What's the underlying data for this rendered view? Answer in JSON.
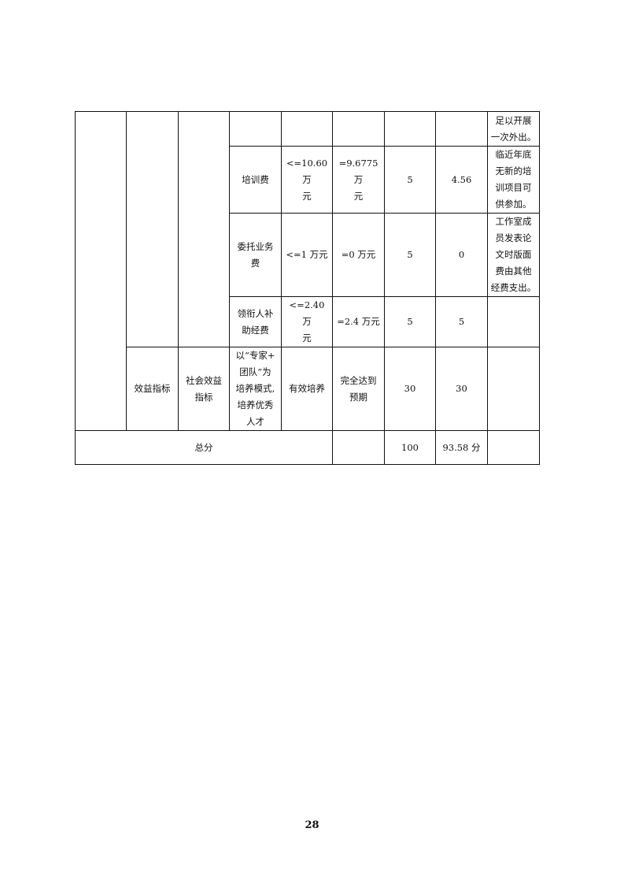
{
  "table": {
    "rows": [
      {
        "cells": [
          "",
          "",
          "",
          "",
          "",
          "",
          "",
          "",
          "足以开展\n一次外出。"
        ]
      },
      {
        "cells": [
          "培训费",
          "<=10.60 万\n元",
          "=9.6775 万\n元",
          "5",
          "4.56",
          "临近年底\n无新的培\n训项目可\n供参加。"
        ]
      },
      {
        "cells": [
          "委托业务\n费",
          "<=1 万元",
          "=0 万元",
          "5",
          "0",
          "工作室成\n员发表论\n文时版面\n费由其他\n经费支出。"
        ]
      },
      {
        "cells": [
          "领衔人补\n助经费",
          "<=2.40 万\n元",
          "=2.4 万元",
          "5",
          "5",
          ""
        ]
      },
      {
        "cells": [
          "效益指标",
          "社会效益\n指标",
          "以“专家+\n团队”为\n培养模式,\n培养优秀\n人才",
          "有效培养",
          "完全达到\n预期",
          "30",
          "30",
          ""
        ]
      }
    ],
    "total": {
      "label": "总分",
      "blank": "",
      "score": "100",
      "actual": "93.58 分",
      "note": ""
    }
  },
  "page_number": "28"
}
